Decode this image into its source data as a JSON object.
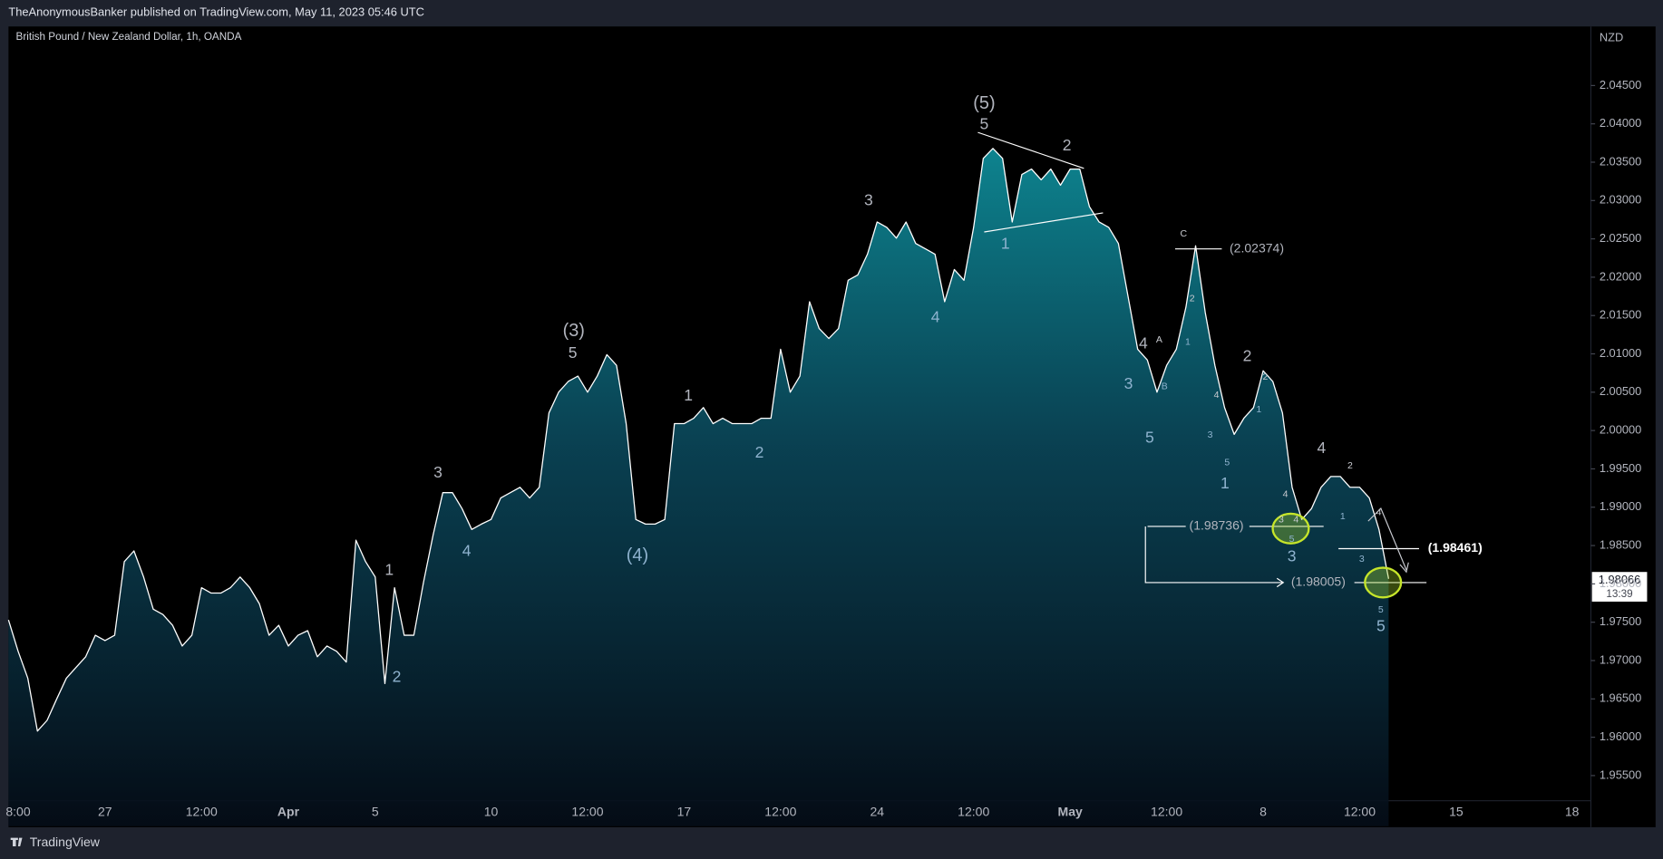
{
  "header": "TheAnonymousBanker published on TradingView.com, May 11, 2023 05:46 UTC",
  "footer": "TradingView",
  "chart_data": {
    "type": "line",
    "title": "British Pound / New Zealand Dollar, 1h, OANDA",
    "y_axis_label": "NZD",
    "countdown": "13:39",
    "color": "#ffffff",
    "grid": false,
    "categories": [
      null,
      "8:00",
      null,
      null,
      null,
      null,
      null,
      null,
      null,
      null,
      "27",
      null,
      null,
      null,
      null,
      null,
      null,
      null,
      null,
      null,
      "12:00",
      null,
      null,
      null,
      null,
      null,
      null,
      null,
      null,
      "Apr",
      null,
      null,
      null,
      null,
      null,
      null,
      null,
      null,
      "5",
      null,
      null,
      null,
      null,
      null,
      null,
      null,
      null,
      null,
      null,
      null,
      "10",
      null,
      null,
      null,
      null,
      null,
      null,
      null,
      null,
      null,
      "12:00",
      null,
      null,
      null,
      null,
      null,
      null,
      null,
      null,
      null,
      "17",
      null,
      null,
      null,
      null,
      null,
      null,
      null,
      null,
      null,
      "12:00",
      null,
      null,
      null,
      null,
      null,
      null,
      null,
      null,
      null,
      "24",
      null,
      null,
      null,
      null,
      null,
      null,
      null,
      null,
      null,
      "12:00",
      null,
      null,
      null,
      null,
      null,
      null,
      null,
      null,
      null,
      "May",
      null,
      null,
      null,
      null,
      null,
      null,
      null,
      null,
      null,
      "12:00",
      null,
      null,
      null,
      null,
      null,
      null,
      null,
      null,
      null,
      "8",
      null,
      null,
      null,
      null,
      null,
      null,
      null,
      null,
      null,
      "12:00",
      null,
      null,
      null,
      null,
      null,
      null,
      null,
      null,
      null,
      "15",
      null,
      null,
      null,
      null,
      null,
      null,
      null,
      null,
      null,
      null,
      null,
      "18"
    ],
    "values": [
      1.9753,
      1.9712,
      1.9677,
      1.9608,
      1.9622,
      1.965,
      1.9677,
      1.9691,
      1.9705,
      1.9733,
      1.9726,
      1.9733,
      1.9829,
      1.9843,
      1.9809,
      1.9767,
      1.976,
      1.9746,
      1.9719,
      1.9733,
      1.9795,
      1.9788,
      1.9788,
      1.9795,
      1.9809,
      1.9795,
      1.9774,
      1.9733,
      1.9746,
      1.9719,
      1.9733,
      1.9739,
      1.9705,
      1.9719,
      1.9712,
      1.9698,
      1.9857,
      1.9829,
      1.9809,
      1.967,
      1.9795,
      1.9733,
      1.9733,
      1.9802,
      1.9864,
      1.9919,
      1.9919,
      1.9898,
      1.9871,
      1.9878,
      1.9884,
      1.9912,
      1.9919,
      1.9926,
      1.9912,
      1.9926,
      2.0023,
      2.005,
      2.0064,
      2.0071,
      2.005,
      2.0071,
      2.0099,
      2.0085,
      2.0009,
      1.9884,
      1.9878,
      1.9878,
      1.9884,
      2.0009,
      2.0009,
      2.0016,
      2.003,
      2.0009,
      2.0016,
      2.0009,
      2.0009,
      2.0009,
      2.0016,
      2.0016,
      2.0106,
      2.005,
      2.0071,
      2.0168,
      2.0133,
      2.012,
      2.0133,
      2.0196,
      2.0203,
      2.023,
      2.0272,
      2.0265,
      2.0251,
      2.0272,
      2.0244,
      2.0237,
      2.023,
      2.0168,
      2.021,
      2.0196,
      2.0265,
      2.0355,
      2.0368,
      2.0355,
      2.0272,
      2.0334,
      2.0341,
      2.0327,
      2.0341,
      2.032,
      2.0341,
      2.0341,
      2.0292,
      2.0272,
      2.0265,
      2.0244,
      2.0175,
      2.0106,
      2.0092,
      2.005,
      2.0085,
      2.0106,
      2.0161,
      2.0241,
      2.0154,
      2.0085,
      2.003,
      1.9995,
      2.0016,
      2.003,
      2.0078,
      2.0064,
      2.0023,
      1.9926,
      1.9884,
      1.9898,
      1.9926,
      1.994,
      1.994,
      1.9926,
      1.9926,
      1.9912,
      1.9871,
      1.98066,
      null,
      null,
      null,
      null,
      null,
      null,
      null,
      null,
      null,
      null,
      null,
      null,
      null,
      null,
      null,
      null,
      null,
      null,
      null
    ],
    "ylim": [
      1.9484,
      2.0527
    ],
    "yticks": [
      {
        "value": 1.955,
        "label": "1.95500"
      },
      {
        "value": 1.96,
        "label": "1.96000"
      },
      {
        "value": 1.965,
        "label": "1.96500"
      },
      {
        "value": 1.97,
        "label": "1.97000"
      },
      {
        "value": 1.975,
        "label": "1.97500"
      },
      {
        "value": 1.98,
        "label": "1.98000"
      },
      {
        "value": 1.985,
        "label": "1.98500"
      },
      {
        "value": 1.99,
        "label": "1.99000"
      },
      {
        "value": 1.995,
        "label": "1.99500"
      },
      {
        "value": 2.0,
        "label": "2.00000"
      },
      {
        "value": 2.005,
        "label": "2.00500"
      },
      {
        "value": 2.01,
        "label": "2.01000"
      },
      {
        "value": 2.015,
        "label": "2.01500"
      },
      {
        "value": 2.02,
        "label": "2.02000"
      },
      {
        "value": 2.025,
        "label": "2.02500"
      },
      {
        "value": 2.03,
        "label": "2.03000"
      },
      {
        "value": 2.035,
        "label": "2.03500"
      },
      {
        "value": 2.04,
        "label": "2.04000"
      },
      {
        "value": 2.045,
        "label": "2.04500"
      }
    ],
    "annotations": [
      "(5)",
      "5",
      "2",
      "1",
      "3",
      "4",
      "(3)",
      "5",
      "1",
      "2",
      "(4)",
      "3",
      "4",
      "1",
      "2",
      "C",
      "2",
      "1",
      "4",
      "A",
      "B",
      "3",
      "5",
      "2",
      "2",
      "4",
      "1",
      "3",
      "5",
      "1",
      "4",
      "2",
      "4",
      "1",
      "3",
      "4",
      "5",
      "3",
      "4",
      "3",
      "5",
      "5",
      "(2.02374)",
      "(1.98736)",
      "(1.98005)",
      "(1.98461)"
    ]
  }
}
